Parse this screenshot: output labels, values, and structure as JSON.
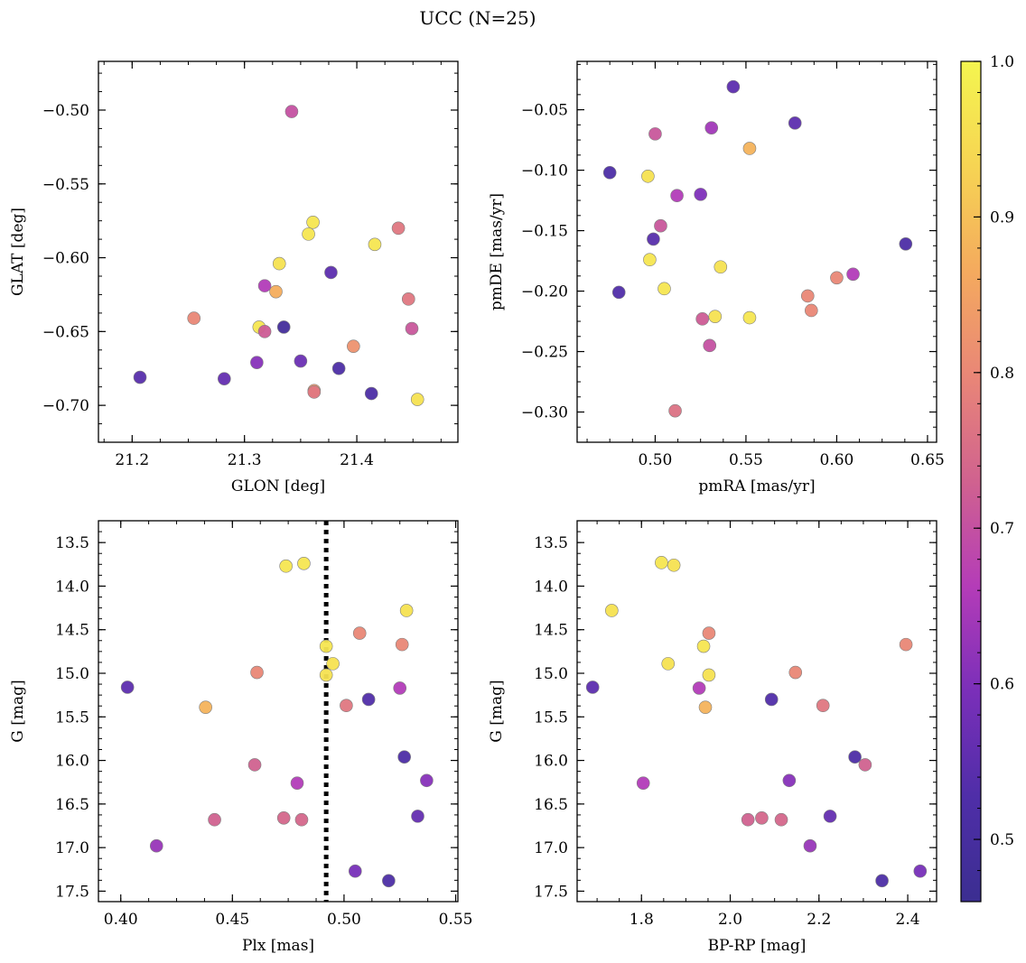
{
  "figure": {
    "title": "UCC (N=25)"
  },
  "colorbar": {
    "min": 0.46,
    "max": 1.0,
    "ticks": [
      0.5,
      0.6,
      0.7,
      0.8,
      0.9,
      1.0
    ],
    "tick_labels": [
      "0.5",
      "0.6",
      "0.7",
      "0.8",
      "0.9",
      "1.0"
    ],
    "colormap": "plasma"
  },
  "colors": {
    "colormap_stops": [
      "#3b2e91",
      "#4f2ea8",
      "#7a2fb9",
      "#b43cb8",
      "#d0628f",
      "#e98677",
      "#f4aa5e",
      "#f6d453",
      "#f4f54f"
    ],
    "marker_edge": "#7f7f7f",
    "reference_line": "#000000"
  },
  "chart_data": [
    {
      "type": "scatter",
      "panel": "top-left",
      "xlabel": "GLON [deg]",
      "ylabel": "GLAT [deg]",
      "xlim": [
        21.17,
        21.49
      ],
      "ylim": [
        -0.725,
        -0.467
      ],
      "xticks": [
        21.2,
        21.3,
        21.4
      ],
      "xtick_labels": [
        "21.2",
        "21.3",
        "21.4"
      ],
      "yticks": [
        -0.5,
        -0.55,
        -0.6,
        -0.65,
        -0.7
      ],
      "ytick_labels": [
        "−0.50",
        "−0.55",
        "−0.60",
        "−0.65",
        "−0.70"
      ],
      "grid": false,
      "points": [
        {
          "x": 21.342,
          "y": -0.501,
          "c": 0.7
        },
        {
          "x": 21.361,
          "y": -0.576,
          "c": 0.97
        },
        {
          "x": 21.357,
          "y": -0.584,
          "c": 0.97
        },
        {
          "x": 21.437,
          "y": -0.58,
          "c": 0.77
        },
        {
          "x": 21.416,
          "y": -0.591,
          "c": 0.97
        },
        {
          "x": 21.331,
          "y": -0.604,
          "c": 0.96
        },
        {
          "x": 21.377,
          "y": -0.61,
          "c": 0.55
        },
        {
          "x": 21.318,
          "y": -0.619,
          "c": 0.66
        },
        {
          "x": 21.328,
          "y": -0.623,
          "c": 0.87
        },
        {
          "x": 21.446,
          "y": -0.628,
          "c": 0.77
        },
        {
          "x": 21.255,
          "y": -0.641,
          "c": 0.8
        },
        {
          "x": 21.313,
          "y": -0.647,
          "c": 0.97
        },
        {
          "x": 21.335,
          "y": -0.647,
          "c": 0.49
        },
        {
          "x": 21.318,
          "y": -0.65,
          "c": 0.72
        },
        {
          "x": 21.449,
          "y": -0.648,
          "c": 0.71
        },
        {
          "x": 21.397,
          "y": -0.66,
          "c": 0.82
        },
        {
          "x": 21.311,
          "y": -0.671,
          "c": 0.61
        },
        {
          "x": 21.35,
          "y": -0.67,
          "c": 0.57
        },
        {
          "x": 21.384,
          "y": -0.675,
          "c": 0.52
        },
        {
          "x": 21.207,
          "y": -0.681,
          "c": 0.54
        },
        {
          "x": 21.282,
          "y": -0.682,
          "c": 0.56
        },
        {
          "x": 21.362,
          "y": -0.69,
          "c": 0.83
        },
        {
          "x": 21.362,
          "y": -0.691,
          "c": 0.77
        },
        {
          "x": 21.413,
          "y": -0.692,
          "c": 0.52
        },
        {
          "x": 21.454,
          "y": -0.696,
          "c": 0.96
        }
      ]
    },
    {
      "type": "scatter",
      "panel": "top-right",
      "xlabel": "pmRA [mas/yr]",
      "ylabel": "pmDE [mas/yr]",
      "xlim": [
        0.457,
        0.655
      ],
      "ylim": [
        -0.325,
        -0.01
      ],
      "xticks": [
        0.5,
        0.55,
        0.6,
        0.65
      ],
      "xtick_labels": [
        "0.50",
        "0.55",
        "0.60",
        "0.65"
      ],
      "yticks": [
        -0.05,
        -0.1,
        -0.15,
        -0.2,
        -0.25,
        -0.3
      ],
      "ytick_labels": [
        "−0.05",
        "−0.10",
        "−0.15",
        "−0.20",
        "−0.25",
        "−0.30"
      ],
      "grid": false,
      "points": [
        {
          "x": 0.543,
          "y": -0.031,
          "c": 0.55
        },
        {
          "x": 0.577,
          "y": -0.061,
          "c": 0.55
        },
        {
          "x": 0.531,
          "y": -0.065,
          "c": 0.64
        },
        {
          "x": 0.5,
          "y": -0.07,
          "c": 0.71
        },
        {
          "x": 0.552,
          "y": -0.082,
          "c": 0.88
        },
        {
          "x": 0.475,
          "y": -0.102,
          "c": 0.52
        },
        {
          "x": 0.496,
          "y": -0.105,
          "c": 0.96
        },
        {
          "x": 0.512,
          "y": -0.121,
          "c": 0.66
        },
        {
          "x": 0.525,
          "y": -0.12,
          "c": 0.6
        },
        {
          "x": 0.503,
          "y": -0.146,
          "c": 0.71
        },
        {
          "x": 0.499,
          "y": -0.157,
          "c": 0.54
        },
        {
          "x": 0.638,
          "y": -0.161,
          "c": 0.52
        },
        {
          "x": 0.497,
          "y": -0.174,
          "c": 0.97
        },
        {
          "x": 0.536,
          "y": -0.18,
          "c": 0.96
        },
        {
          "x": 0.609,
          "y": -0.186,
          "c": 0.66
        },
        {
          "x": 0.6,
          "y": -0.189,
          "c": 0.8
        },
        {
          "x": 0.48,
          "y": -0.201,
          "c": 0.53
        },
        {
          "x": 0.505,
          "y": -0.198,
          "c": 0.97
        },
        {
          "x": 0.584,
          "y": -0.204,
          "c": 0.8
        },
        {
          "x": 0.586,
          "y": -0.216,
          "c": 0.8
        },
        {
          "x": 0.526,
          "y": -0.223,
          "c": 0.72
        },
        {
          "x": 0.533,
          "y": -0.221,
          "c": 0.96
        },
        {
          "x": 0.552,
          "y": -0.222,
          "c": 0.97
        },
        {
          "x": 0.53,
          "y": -0.245,
          "c": 0.7
        },
        {
          "x": 0.511,
          "y": -0.299,
          "c": 0.76
        }
      ]
    },
    {
      "type": "scatter",
      "panel": "bottom-left",
      "xlabel": "Plx [mas]",
      "ylabel": "G [mag]",
      "xlim": [
        0.39,
        0.551
      ],
      "ylim": [
        17.62,
        13.25
      ],
      "y_inverted": true,
      "xticks": [
        0.4,
        0.45,
        0.5,
        0.55
      ],
      "xtick_labels": [
        "0.40",
        "0.45",
        "0.50",
        "0.55"
      ],
      "yticks": [
        13.5,
        14.0,
        14.5,
        15.0,
        15.5,
        16.0,
        16.5,
        17.0,
        17.5
      ],
      "ytick_labels": [
        "13.5",
        "14.0",
        "14.5",
        "15.0",
        "15.5",
        "16.0",
        "16.5",
        "17.0",
        "17.5"
      ],
      "grid": false,
      "reference_line": {
        "x": 0.492,
        "style": "dotted"
      },
      "points": [
        {
          "x": 0.474,
          "y": 13.77,
          "c": 0.97
        },
        {
          "x": 0.482,
          "y": 13.74,
          "c": 0.97
        },
        {
          "x": 0.528,
          "y": 14.28,
          "c": 0.96
        },
        {
          "x": 0.507,
          "y": 14.54,
          "c": 0.8
        },
        {
          "x": 0.526,
          "y": 14.67,
          "c": 0.8
        },
        {
          "x": 0.492,
          "y": 14.69,
          "c": 0.97
        },
        {
          "x": 0.495,
          "y": 14.89,
          "c": 0.96
        },
        {
          "x": 0.461,
          "y": 14.99,
          "c": 0.8
        },
        {
          "x": 0.492,
          "y": 15.02,
          "c": 0.96
        },
        {
          "x": 0.403,
          "y": 15.16,
          "c": 0.55
        },
        {
          "x": 0.525,
          "y": 15.17,
          "c": 0.66
        },
        {
          "x": 0.511,
          "y": 15.3,
          "c": 0.53
        },
        {
          "x": 0.501,
          "y": 15.37,
          "c": 0.77
        },
        {
          "x": 0.438,
          "y": 15.39,
          "c": 0.88
        },
        {
          "x": 0.527,
          "y": 15.96,
          "c": 0.52
        },
        {
          "x": 0.46,
          "y": 16.05,
          "c": 0.73
        },
        {
          "x": 0.537,
          "y": 16.23,
          "c": 0.61
        },
        {
          "x": 0.479,
          "y": 16.26,
          "c": 0.66
        },
        {
          "x": 0.533,
          "y": 16.64,
          "c": 0.56
        },
        {
          "x": 0.442,
          "y": 16.68,
          "c": 0.73
        },
        {
          "x": 0.473,
          "y": 16.66,
          "c": 0.74
        },
        {
          "x": 0.481,
          "y": 16.68,
          "c": 0.74
        },
        {
          "x": 0.416,
          "y": 16.98,
          "c": 0.63
        },
        {
          "x": 0.505,
          "y": 17.27,
          "c": 0.59
        },
        {
          "x": 0.52,
          "y": 17.38,
          "c": 0.52
        }
      ]
    },
    {
      "type": "scatter",
      "panel": "bottom-right",
      "xlabel": "BP-RP [mag]",
      "ylabel": "G [mag]",
      "xlim": [
        1.655,
        2.465
      ],
      "ylim": [
        17.62,
        13.25
      ],
      "y_inverted": true,
      "xticks": [
        1.8,
        2.0,
        2.2,
        2.4
      ],
      "xtick_labels": [
        "1.8",
        "2.0",
        "2.2",
        "2.4"
      ],
      "yticks": [
        13.5,
        14.0,
        14.5,
        15.0,
        15.5,
        16.0,
        16.5,
        17.0,
        17.5
      ],
      "ytick_labels": [
        "13.5",
        "14.0",
        "14.5",
        "15.0",
        "15.5",
        "16.0",
        "16.5",
        "17.0",
        "17.5"
      ],
      "grid": false,
      "points": [
        {
          "x": 1.845,
          "y": 13.73,
          "c": 0.97
        },
        {
          "x": 1.873,
          "y": 13.76,
          "c": 0.96
        },
        {
          "x": 1.733,
          "y": 14.28,
          "c": 0.96
        },
        {
          "x": 1.952,
          "y": 14.54,
          "c": 0.8
        },
        {
          "x": 2.396,
          "y": 14.67,
          "c": 0.8
        },
        {
          "x": 1.94,
          "y": 14.69,
          "c": 0.97
        },
        {
          "x": 1.86,
          "y": 14.89,
          "c": 0.96
        },
        {
          "x": 2.147,
          "y": 14.99,
          "c": 0.8
        },
        {
          "x": 1.952,
          "y": 15.02,
          "c": 0.96
        },
        {
          "x": 1.69,
          "y": 15.16,
          "c": 0.55
        },
        {
          "x": 1.93,
          "y": 15.17,
          "c": 0.66
        },
        {
          "x": 2.093,
          "y": 15.3,
          "c": 0.53
        },
        {
          "x": 2.209,
          "y": 15.37,
          "c": 0.77
        },
        {
          "x": 1.944,
          "y": 15.39,
          "c": 0.88
        },
        {
          "x": 2.281,
          "y": 15.96,
          "c": 0.52
        },
        {
          "x": 2.304,
          "y": 16.05,
          "c": 0.73
        },
        {
          "x": 2.133,
          "y": 16.23,
          "c": 0.61
        },
        {
          "x": 1.804,
          "y": 16.26,
          "c": 0.66
        },
        {
          "x": 2.225,
          "y": 16.64,
          "c": 0.56
        },
        {
          "x": 2.04,
          "y": 16.68,
          "c": 0.73
        },
        {
          "x": 2.071,
          "y": 16.66,
          "c": 0.74
        },
        {
          "x": 2.115,
          "y": 16.68,
          "c": 0.74
        },
        {
          "x": 2.18,
          "y": 16.98,
          "c": 0.63
        },
        {
          "x": 2.428,
          "y": 17.27,
          "c": 0.59
        },
        {
          "x": 2.342,
          "y": 17.38,
          "c": 0.52
        }
      ]
    }
  ]
}
